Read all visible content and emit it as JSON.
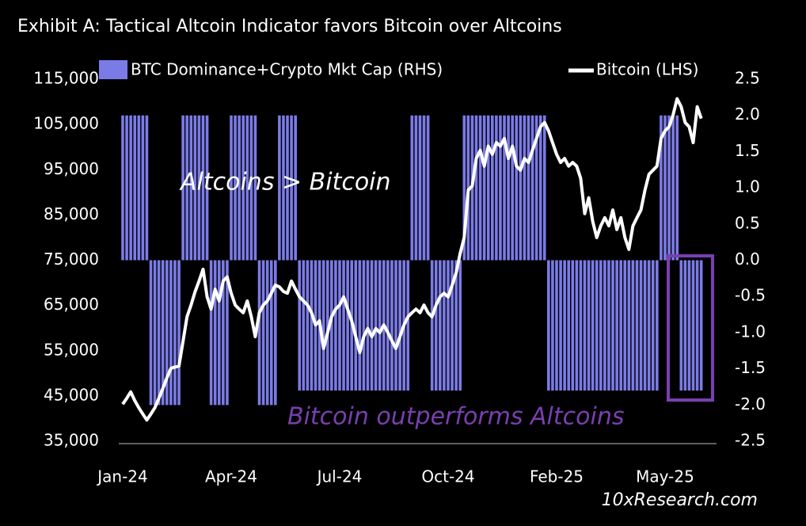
{
  "chart_data": {
    "type": "bar_line",
    "title": "Exhibit A: Tactical Altcoin Indicator favors Bitcoin over Altcoins",
    "annotations": [
      "Altcoins > Bitcoin",
      "Bitcoin outperforms Altcoins"
    ],
    "source": "10xResearch.com",
    "categories": [
      "Jan-24",
      null,
      null,
      null,
      null,
      null,
      null,
      null,
      null,
      null,
      null,
      null,
      null,
      null,
      null,
      null,
      null,
      null,
      null,
      null,
      null,
      null,
      null,
      null,
      null,
      null,
      null,
      "Apr-24",
      null,
      null,
      null,
      null,
      null,
      null,
      null,
      null,
      null,
      null,
      null,
      null,
      null,
      null,
      null,
      null,
      null,
      null,
      null,
      null,
      null,
      null,
      null,
      null,
      null,
      null,
      "Jul-24",
      null,
      null,
      null,
      null,
      null,
      null,
      null,
      null,
      null,
      null,
      null,
      null,
      null,
      null,
      null,
      null,
      null,
      null,
      null,
      null,
      null,
      null,
      null,
      null,
      null,
      null,
      "Oct-24",
      null,
      null,
      null,
      null,
      null,
      null,
      null,
      null,
      null,
      null,
      null,
      null,
      null,
      null,
      null,
      null,
      null,
      null,
      null,
      null,
      null,
      null,
      null,
      null,
      null,
      null,
      "Feb-25",
      null,
      null,
      null,
      null,
      null,
      null,
      null,
      null,
      null,
      null,
      null,
      null,
      null,
      null,
      null,
      null,
      null,
      null,
      null,
      null,
      null,
      null,
      null,
      null,
      null,
      null,
      "May-25",
      null,
      null,
      null,
      null,
      null,
      null,
      null,
      null,
      null
    ],
    "series": [
      {
        "name": "BTC Dominance+Crypto Mkt Cap (RHS)",
        "color": "#7b7be8",
        "axis": "y2",
        "values": [
          2,
          2,
          2,
          2,
          2,
          2,
          2,
          -2,
          -2,
          -2,
          -2,
          -2,
          -2,
          -2,
          -2,
          2,
          2,
          2,
          2,
          2,
          2,
          2,
          -2,
          -2,
          -2,
          -2,
          -2,
          2,
          2,
          2,
          2,
          2,
          2,
          2,
          -2,
          -2,
          -2,
          -2,
          -2,
          2,
          2,
          2,
          2,
          2,
          -1.8,
          -1.8,
          -1.8,
          -1.8,
          -1.8,
          -1.8,
          -1.8,
          -1.8,
          -1.8,
          -1.8,
          -1.8,
          -1.8,
          -1.8,
          -1.8,
          -1.8,
          -1.8,
          -1.8,
          -1.8,
          -1.8,
          -1.8,
          -1.8,
          -1.8,
          -1.8,
          -1.8,
          -1.8,
          -1.8,
          -1.8,
          -1.8,
          2,
          2,
          2,
          2,
          2,
          -1.8,
          -1.8,
          -1.8,
          -1.8,
          -1.8,
          -1.8,
          -1.8,
          -1.8,
          2,
          2,
          2,
          2,
          2,
          2,
          2,
          2,
          2,
          2,
          2,
          2,
          2,
          2,
          2,
          2,
          2,
          2,
          2,
          2,
          2,
          -1.8,
          -1.8,
          -1.8,
          -1.8,
          -1.8,
          -1.8,
          -1.8,
          -1.8,
          -1.8,
          -1.8,
          -1.8,
          -1.8,
          -1.8,
          -1.8,
          -1.8,
          -1.8,
          -1.8,
          -1.8,
          -1.8,
          -1.8,
          -1.8,
          -1.8,
          -1.8,
          -1.8,
          -1.8,
          -1.8,
          -1.8,
          -1.8,
          2,
          2,
          2,
          2,
          2,
          -1.8,
          -1.8,
          -1.8,
          -1.8,
          -1.8,
          -1.8
        ]
      },
      {
        "name": "Bitcoin (LHS)",
        "color": "#ffffff",
        "values": [
          43200,
          44500,
          45900,
          44000,
          42400,
          41000,
          39700,
          41000,
          42400,
          44500,
          46700,
          49000,
          51100,
          51400,
          51600,
          57000,
          62500,
          65100,
          68000,
          70400,
          73000,
          66900,
          64200,
          68600,
          66000,
          70400,
          71300,
          67700,
          65100,
          64200,
          63400,
          66000,
          62500,
          58100,
          63400,
          65100,
          66000,
          67700,
          69500,
          69100,
          68100,
          67700,
          70400,
          68600,
          66900,
          66000,
          65100,
          63400,
          60700,
          61600,
          55500,
          59000,
          62500,
          64200,
          65100,
          66900,
          64200,
          61600,
          58100,
          54600,
          58100,
          59900,
          58100,
          59900,
          59000,
          60700,
          59000,
          57200,
          55500,
          58100,
          60700,
          62500,
          63400,
          64200,
          63400,
          65100,
          63400,
          62500,
          65100,
          66900,
          67700,
          66900,
          69500,
          72200,
          76500,
          80000,
          90500,
          91400,
          97500,
          99300,
          95800,
          100200,
          98400,
          101000,
          100200,
          101900,
          97500,
          100200,
          95800,
          94900,
          97500,
          96600,
          99300,
          101900,
          104500,
          105400,
          103600,
          101000,
          98400,
          96600,
          97500,
          95800,
          96600,
          95800,
          93100,
          85300,
          88800,
          83500,
          80000,
          82600,
          84400,
          82600,
          86100,
          81800,
          84400,
          80000,
          77400,
          82600,
          84400,
          86100,
          90500,
          94000,
          94900,
          95800,
          101900,
          103600,
          104500,
          107100,
          110700,
          108900,
          105400,
          104500,
          101000,
          108900,
          106300
        ]
      }
    ],
    "ylim": [
      35000,
      115000
    ],
    "yticks": [
      {
        "value": 35000,
        "label": "35,000"
      },
      {
        "value": 45000,
        "label": "45,000"
      },
      {
        "value": 55000,
        "label": "55,000"
      },
      {
        "value": 65000,
        "label": "65,000"
      },
      {
        "value": 75000,
        "label": "75,000"
      },
      {
        "value": 85000,
        "label": "85,000"
      },
      {
        "value": 95000,
        "label": "95,000"
      },
      {
        "value": 105000,
        "label": "105,000"
      },
      {
        "value": 115000,
        "label": "115,000"
      }
    ],
    "y2lim": [
      -2.5,
      2.5
    ],
    "y2ticks": [
      2.5,
      {
        "value": 2,
        "label": "2.0"
      },
      1.5,
      {
        "value": 1,
        "label": "1.0"
      },
      0.5,
      {
        "value": 0,
        "label": "0.0"
      },
      -0.5,
      {
        "value": -1,
        "label": "-1.0"
      },
      -1.5,
      {
        "value": -2,
        "label": "-2.0"
      },
      -2.5
    ]
  }
}
